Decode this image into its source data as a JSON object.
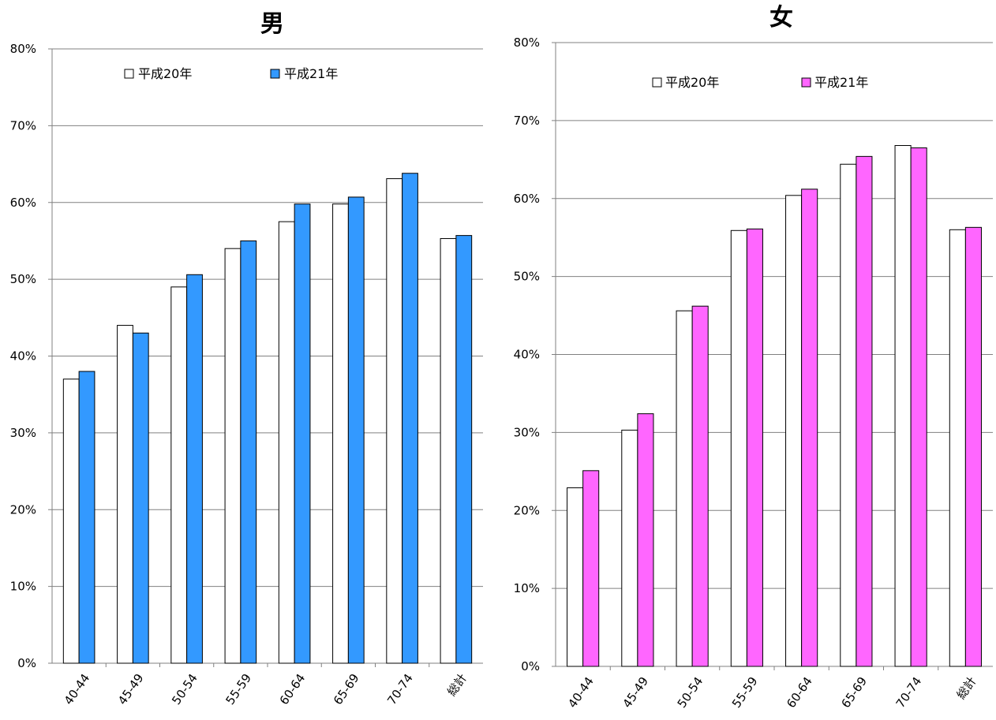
{
  "chart_data": [
    {
      "type": "bar",
      "title": "男",
      "categories": [
        "40-44",
        "45-49",
        "50-54",
        "55-59",
        "60-64",
        "65-69",
        "70-74",
        "総計"
      ],
      "series": [
        {
          "name": "平成20年",
          "color": "#ffffff",
          "values": [
            37.0,
            44.0,
            49.0,
            54.0,
            57.5,
            59.8,
            63.1,
            55.3
          ]
        },
        {
          "name": "平成21年",
          "color": "#3399ff",
          "values": [
            38.0,
            43.0,
            50.6,
            55.0,
            59.8,
            60.7,
            63.8,
            55.7
          ]
        }
      ],
      "ylim": [
        0,
        80
      ],
      "yticks": [
        "0%",
        "10%",
        "20%",
        "30%",
        "40%",
        "50%",
        "60%",
        "70%",
        "80%"
      ],
      "legend_position": "top",
      "grid": true
    },
    {
      "type": "bar",
      "title": "女",
      "categories": [
        "40-44",
        "45-49",
        "50-54",
        "55-59",
        "60-64",
        "65-69",
        "70-74",
        "総計"
      ],
      "series": [
        {
          "name": "平成20年",
          "color": "#ffffff",
          "values": [
            22.9,
            30.3,
            45.6,
            55.9,
            60.4,
            64.4,
            66.8,
            56.0
          ]
        },
        {
          "name": "平成21年",
          "color": "#ff66ff",
          "values": [
            25.1,
            32.4,
            46.2,
            56.1,
            61.2,
            65.4,
            66.5,
            56.3
          ]
        }
      ],
      "ylim": [
        0,
        80
      ],
      "yticks": [
        "0%",
        "10%",
        "20%",
        "30%",
        "40%",
        "50%",
        "60%",
        "70%",
        "80%"
      ],
      "legend_position": "top",
      "grid": true
    }
  ]
}
